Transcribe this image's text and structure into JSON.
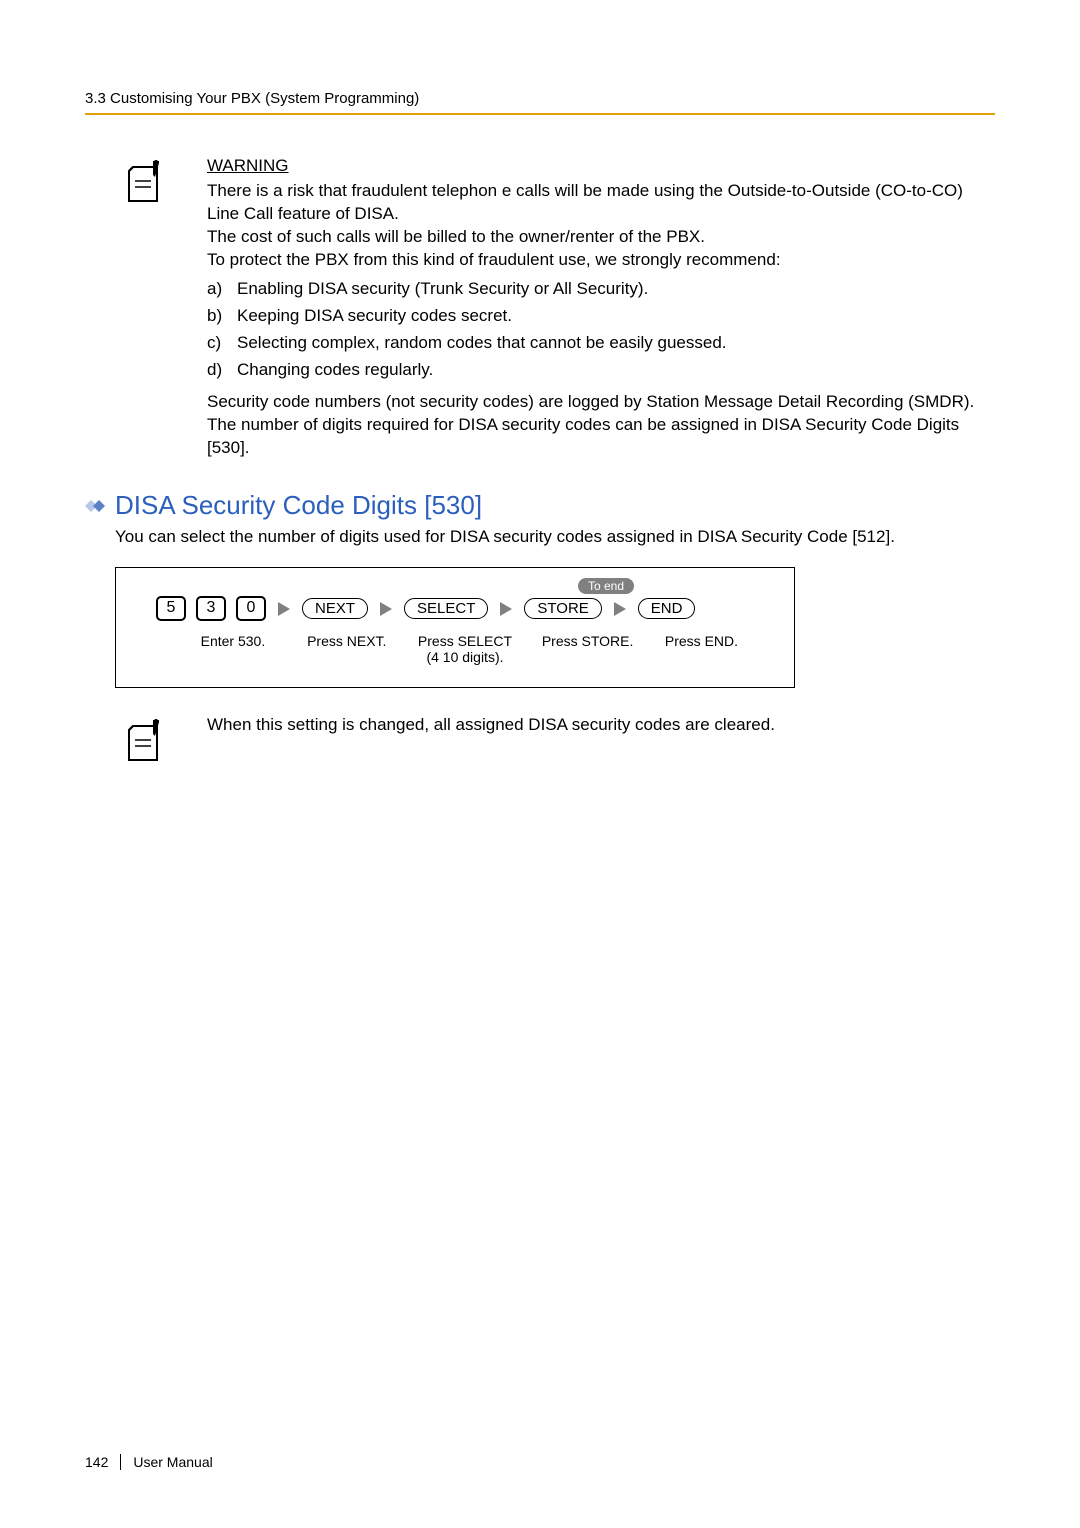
{
  "header": {
    "breadcrumb": "3.3 Customising Your PBX (System Programming)"
  },
  "warning_block": {
    "label": "WARNING",
    "para1": "There is a risk that fraudulent telephon     e calls will be made using the Outside-to-Outside (CO-to-CO) Line Call feature of DISA.",
    "para2": "The cost of such calls will be billed to the owner/renter of the PBX.",
    "para3": "To protect the PBX from this kind of fraudulent use, we strongly recommend:",
    "list": [
      {
        "letter": "a)",
        "text": "Enabling DISA security (Trunk Security or All Security)."
      },
      {
        "letter": "b)",
        "text": "Keeping DISA security codes secret."
      },
      {
        "letter": "c)",
        "text": "Selecting complex, random codes that cannot be easily guessed."
      },
      {
        "letter": "d)",
        "text": "Changing codes regularly."
      }
    ],
    "para4": "Security code numbers (not security codes) are logged by Station Message Detail Recording (SMDR).",
    "para5": "The number of digits required for DISA security codes can be assigned in DISA Security Code Digits [530]."
  },
  "section": {
    "title": "DISA Security Code Digits [530]",
    "description": "You can select the number of digits used for DISA security codes assigned in DISA Security Code [512]."
  },
  "flow": {
    "to_end": "To end",
    "keys": [
      "5",
      "3",
      "0"
    ],
    "buttons": [
      "NEXT",
      "SELECT",
      "STORE",
      "END"
    ],
    "captions": [
      "Enter 530.",
      "Press NEXT.",
      "Press SELECT\n(4 10 digits).",
      "Press STORE.",
      "Press END."
    ],
    "caption_widths": [
      130,
      130,
      140,
      140,
      120
    ],
    "caption_offsets": [
      20,
      0,
      0,
      0,
      0
    ]
  },
  "note2": {
    "text": "When this setting is changed, all assigned DISA security codes are cleared."
  },
  "footer": {
    "page": "142",
    "label": "User Manual"
  },
  "colors": {
    "accent_rule": "#e0a000",
    "title_blue": "#2b5fbd",
    "diamond_light": "#b8c6ea",
    "diamond_dark": "#5d7fc7",
    "arrow_fill": "#808080",
    "to_end_bg": "#808080"
  }
}
